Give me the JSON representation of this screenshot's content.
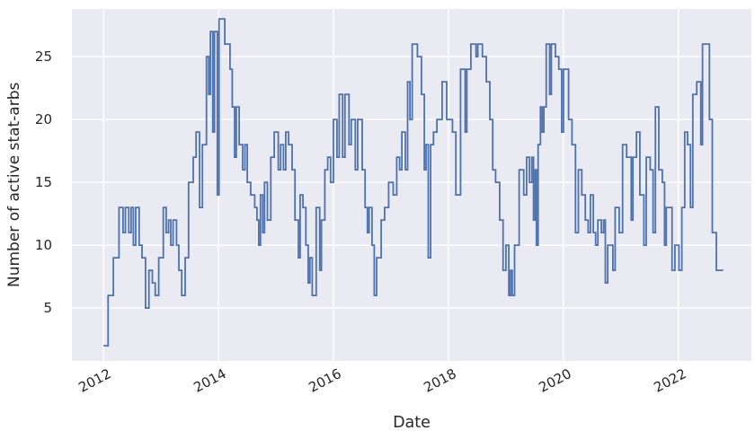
{
  "chart_data": {
    "type": "line",
    "line_style": "step-post",
    "title": "",
    "xlabel": "Date",
    "ylabel": "Number of active stat-arbs",
    "grid": true,
    "legend_position": "none",
    "colors": {
      "line": "#4c72b0",
      "plot_background": "#eaeaf2",
      "gridline": "#ffffff",
      "figure_background": "#ffffff",
      "text": "#262626"
    },
    "xlim": [
      2011.45,
      2023.27
    ],
    "ylim": [
      0.79,
      28.79
    ],
    "xticks": [
      2012,
      2014,
      2016,
      2018,
      2020,
      2022
    ],
    "xtick_labels": [
      "2012",
      "2014",
      "2016",
      "2018",
      "2020",
      "2022"
    ],
    "yticks": [
      5,
      10,
      15,
      20,
      25
    ],
    "ytick_labels": [
      "5",
      "10",
      "15",
      "20",
      "25"
    ],
    "series": [
      {
        "points": [
          [
            2012.0,
            2
          ],
          [
            2012.08,
            6
          ],
          [
            2012.17,
            9
          ],
          [
            2012.27,
            13
          ],
          [
            2012.34,
            11
          ],
          [
            2012.38,
            13
          ],
          [
            2012.44,
            11
          ],
          [
            2012.48,
            13
          ],
          [
            2012.52,
            10
          ],
          [
            2012.56,
            13
          ],
          [
            2012.62,
            10
          ],
          [
            2012.67,
            9
          ],
          [
            2012.73,
            5
          ],
          [
            2012.79,
            8
          ],
          [
            2012.85,
            7
          ],
          [
            2012.9,
            6
          ],
          [
            2012.96,
            9
          ],
          [
            2013.04,
            13
          ],
          [
            2013.09,
            11
          ],
          [
            2013.13,
            12
          ],
          [
            2013.17,
            10
          ],
          [
            2013.21,
            12
          ],
          [
            2013.27,
            10
          ],
          [
            2013.31,
            8
          ],
          [
            2013.36,
            6
          ],
          [
            2013.42,
            9
          ],
          [
            2013.48,
            15
          ],
          [
            2013.56,
            17
          ],
          [
            2013.61,
            19
          ],
          [
            2013.67,
            13
          ],
          [
            2013.72,
            18
          ],
          [
            2013.79,
            25
          ],
          [
            2013.83,
            22
          ],
          [
            2013.86,
            27
          ],
          [
            2013.9,
            19
          ],
          [
            2013.93,
            27
          ],
          [
            2013.98,
            14
          ],
          [
            2014.01,
            28
          ],
          [
            2014.11,
            26
          ],
          [
            2014.2,
            24
          ],
          [
            2014.24,
            21
          ],
          [
            2014.28,
            17
          ],
          [
            2014.31,
            21
          ],
          [
            2014.36,
            18
          ],
          [
            2014.42,
            16
          ],
          [
            2014.46,
            18
          ],
          [
            2014.5,
            15
          ],
          [
            2014.56,
            14
          ],
          [
            2014.63,
            13
          ],
          [
            2014.67,
            12
          ],
          [
            2014.7,
            10
          ],
          [
            2014.73,
            14
          ],
          [
            2014.77,
            11
          ],
          [
            2014.8,
            15
          ],
          [
            2014.85,
            12
          ],
          [
            2014.91,
            17
          ],
          [
            2014.97,
            19
          ],
          [
            2015.04,
            16
          ],
          [
            2015.08,
            18
          ],
          [
            2015.13,
            16
          ],
          [
            2015.17,
            19
          ],
          [
            2015.22,
            18
          ],
          [
            2015.28,
            16
          ],
          [
            2015.33,
            12
          ],
          [
            2015.39,
            9
          ],
          [
            2015.42,
            14
          ],
          [
            2015.47,
            13
          ],
          [
            2015.52,
            10
          ],
          [
            2015.56,
            7
          ],
          [
            2015.59,
            9
          ],
          [
            2015.63,
            6
          ],
          [
            2015.7,
            13
          ],
          [
            2015.76,
            8
          ],
          [
            2015.79,
            12
          ],
          [
            2015.85,
            16
          ],
          [
            2015.9,
            17
          ],
          [
            2015.95,
            15
          ],
          [
            2016.0,
            20
          ],
          [
            2016.06,
            17
          ],
          [
            2016.1,
            22
          ],
          [
            2016.16,
            17
          ],
          [
            2016.2,
            22
          ],
          [
            2016.27,
            18
          ],
          [
            2016.31,
            20
          ],
          [
            2016.38,
            16
          ],
          [
            2016.42,
            20
          ],
          [
            2016.5,
            16
          ],
          [
            2016.55,
            13
          ],
          [
            2016.59,
            11
          ],
          [
            2016.62,
            13
          ],
          [
            2016.67,
            10
          ],
          [
            2016.71,
            6
          ],
          [
            2016.75,
            9
          ],
          [
            2016.83,
            12
          ],
          [
            2016.89,
            13
          ],
          [
            2016.96,
            15
          ],
          [
            2017.04,
            14
          ],
          [
            2017.1,
            17
          ],
          [
            2017.15,
            16
          ],
          [
            2017.19,
            19
          ],
          [
            2017.25,
            16
          ],
          [
            2017.29,
            23
          ],
          [
            2017.33,
            20
          ],
          [
            2017.37,
            26
          ],
          [
            2017.46,
            25
          ],
          [
            2017.53,
            22
          ],
          [
            2017.58,
            16
          ],
          [
            2017.61,
            18
          ],
          [
            2017.65,
            9
          ],
          [
            2017.69,
            18
          ],
          [
            2017.74,
            19
          ],
          [
            2017.8,
            20
          ],
          [
            2017.89,
            23
          ],
          [
            2017.97,
            20
          ],
          [
            2018.07,
            19
          ],
          [
            2018.13,
            14
          ],
          [
            2018.21,
            24
          ],
          [
            2018.29,
            19
          ],
          [
            2018.32,
            24
          ],
          [
            2018.39,
            26
          ],
          [
            2018.48,
            25
          ],
          [
            2018.51,
            26
          ],
          [
            2018.59,
            25
          ],
          [
            2018.66,
            23
          ],
          [
            2018.72,
            20
          ],
          [
            2018.77,
            16
          ],
          [
            2018.82,
            15
          ],
          [
            2018.89,
            12
          ],
          [
            2018.95,
            8
          ],
          [
            2019.0,
            10
          ],
          [
            2019.05,
            6
          ],
          [
            2019.08,
            8
          ],
          [
            2019.11,
            6
          ],
          [
            2019.15,
            10
          ],
          [
            2019.23,
            16
          ],
          [
            2019.31,
            14
          ],
          [
            2019.36,
            17
          ],
          [
            2019.41,
            15
          ],
          [
            2019.45,
            17
          ],
          [
            2019.48,
            12
          ],
          [
            2019.51,
            16
          ],
          [
            2019.53,
            10
          ],
          [
            2019.56,
            18
          ],
          [
            2019.6,
            21
          ],
          [
            2019.63,
            19
          ],
          [
            2019.66,
            21
          ],
          [
            2019.7,
            26
          ],
          [
            2019.76,
            22
          ],
          [
            2019.79,
            26
          ],
          [
            2019.86,
            25
          ],
          [
            2019.92,
            24
          ],
          [
            2019.97,
            19
          ],
          [
            2020.0,
            24
          ],
          [
            2020.09,
            20
          ],
          [
            2020.15,
            18
          ],
          [
            2020.21,
            11
          ],
          [
            2020.26,
            16
          ],
          [
            2020.32,
            14
          ],
          [
            2020.38,
            12
          ],
          [
            2020.43,
            11
          ],
          [
            2020.47,
            14
          ],
          [
            2020.52,
            11
          ],
          [
            2020.56,
            10
          ],
          [
            2020.6,
            12
          ],
          [
            2020.66,
            11
          ],
          [
            2020.7,
            12
          ],
          [
            2020.73,
            7
          ],
          [
            2020.77,
            10
          ],
          [
            2020.86,
            8
          ],
          [
            2020.9,
            13
          ],
          [
            2020.97,
            11
          ],
          [
            2021.03,
            18
          ],
          [
            2021.1,
            17
          ],
          [
            2021.18,
            12
          ],
          [
            2021.21,
            17
          ],
          [
            2021.27,
            19
          ],
          [
            2021.33,
            14
          ],
          [
            2021.4,
            10
          ],
          [
            2021.44,
            17
          ],
          [
            2021.51,
            16
          ],
          [
            2021.56,
            11
          ],
          [
            2021.6,
            21
          ],
          [
            2021.66,
            16
          ],
          [
            2021.72,
            15
          ],
          [
            2021.76,
            10
          ],
          [
            2021.79,
            13
          ],
          [
            2021.89,
            8
          ],
          [
            2021.94,
            10
          ],
          [
            2022.01,
            8
          ],
          [
            2022.06,
            13
          ],
          [
            2022.11,
            19
          ],
          [
            2022.16,
            18
          ],
          [
            2022.21,
            13
          ],
          [
            2022.25,
            22
          ],
          [
            2022.32,
            23
          ],
          [
            2022.39,
            18
          ],
          [
            2022.42,
            26
          ],
          [
            2022.54,
            20
          ],
          [
            2022.59,
            11
          ],
          [
            2022.66,
            8
          ],
          [
            2022.78,
            8
          ]
        ]
      }
    ]
  }
}
